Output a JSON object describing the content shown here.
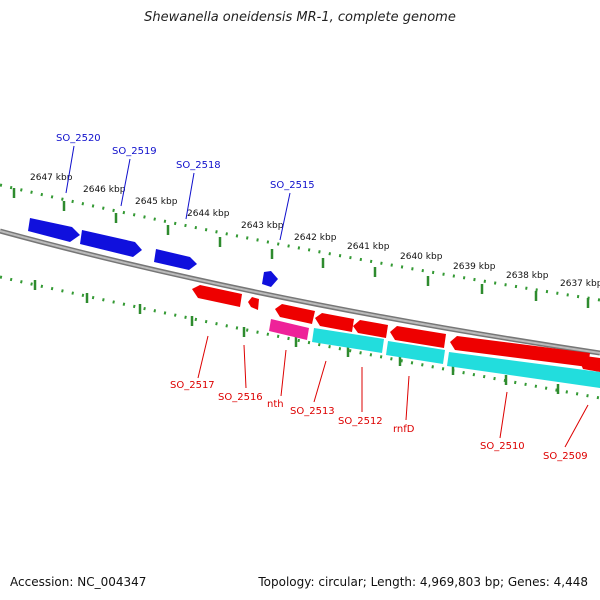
{
  "title": "Shewanella oneidensis MR-1, complete genome",
  "footer": {
    "accession": "Accession: NC_004347",
    "topology": "Topology: circular; Length: 4,969,803 bp; Genes: 4,448"
  },
  "colors": {
    "forward_gene": "#1010dd",
    "reverse_gene": "#ee0000",
    "reverse_gene_alt": "#ee2299",
    "rna_track": "#22dddd",
    "backbone": "#888888",
    "ticks": "#339933"
  },
  "scale_labels": [
    "2647 kbp",
    "2646 kbp",
    "2645 kbp",
    "2644 kbp",
    "2643 kbp",
    "2642 kbp",
    "2641 kbp",
    "2640 kbp",
    "2639 kbp",
    "2638 kbp",
    "2637 kbp"
  ],
  "forward_gene_labels": [
    "SO_2520",
    "SO_2519",
    "SO_2518",
    "SO_2515"
  ],
  "reverse_gene_labels": [
    "SO_2517",
    "SO_2516",
    "nth",
    "SO_2513",
    "SO_2512",
    "rnfD",
    "SO_2510",
    "SO_2509"
  ]
}
